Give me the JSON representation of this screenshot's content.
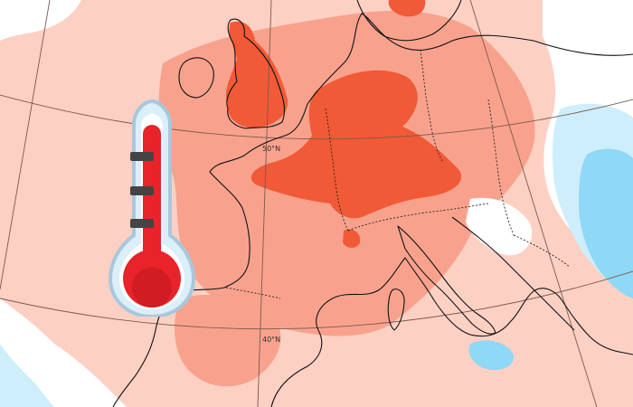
{
  "map": {
    "latitude_labels": [
      "50°N",
      "40°N"
    ],
    "legend_colors": {
      "background_warm": "#fdd0c4",
      "moderate_warm": "#f8a28e",
      "strong_warm": "#f05a36",
      "cool": "#ffffff",
      "cold_light": "#cfeefc",
      "cold": "#8fd8f6"
    },
    "icon": "thermometer-icon"
  }
}
